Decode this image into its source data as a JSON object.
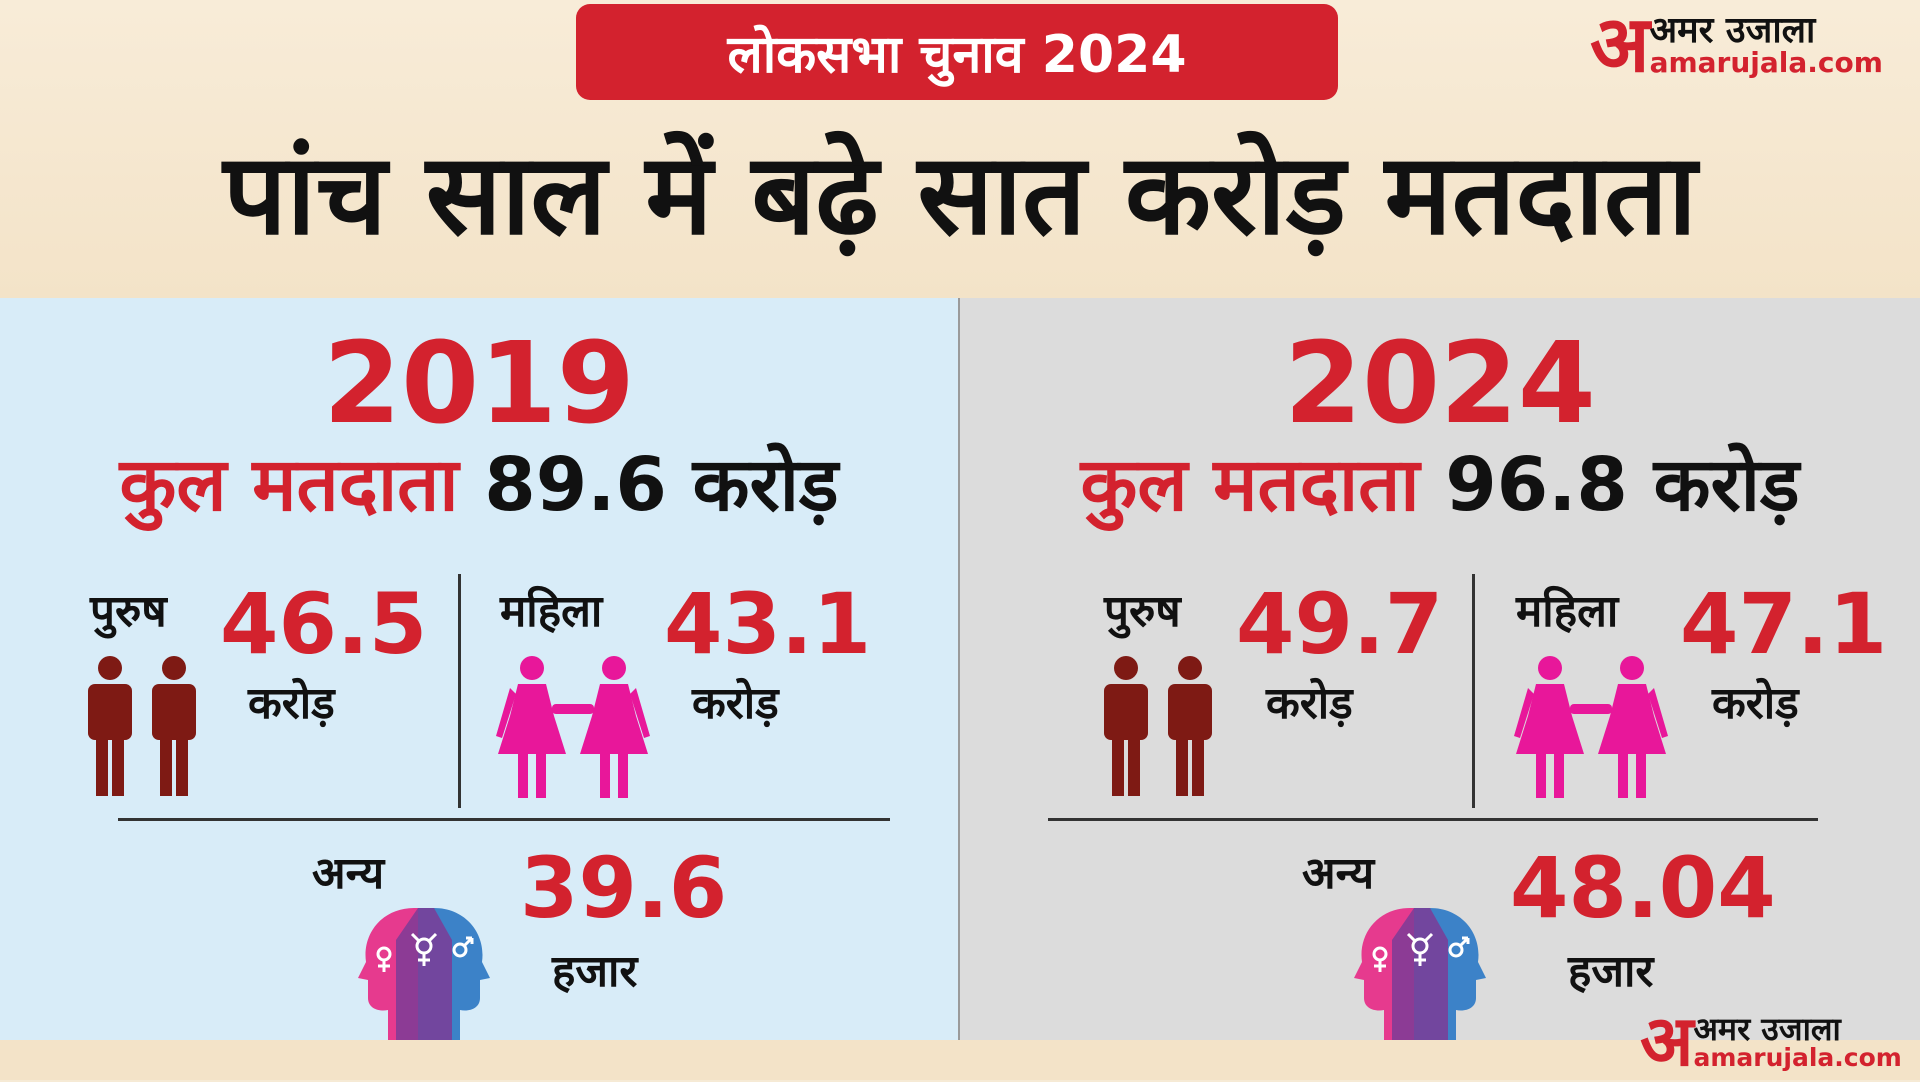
{
  "header": {
    "tag": "लोकसभा चुनाव 2024",
    "headline": "पांच साल में बढ़े सात करोड़ मतदाता"
  },
  "logo": {
    "symbol": "अ",
    "hindi": "अमर उजाला",
    "english": "amarujala.com"
  },
  "panels": [
    {
      "year": "2019",
      "total_label": "कुल मतदाता",
      "total_value": "89.6 करोड़",
      "male": {
        "label": "पुरुष",
        "value": "46.5",
        "unit": "करोड़"
      },
      "female": {
        "label": "महिला",
        "value": "43.1",
        "unit": "करोड़"
      },
      "other": {
        "label": "अन्य",
        "value": "39.6",
        "unit": "हजार"
      }
    },
    {
      "year": "2024",
      "total_label": "कुल मतदाता",
      "total_value": "96.8 करोड़",
      "male": {
        "label": "पुरुष",
        "value": "49.7",
        "unit": "करोड़"
      },
      "female": {
        "label": "महिला",
        "value": "47.1",
        "unit": "करोड़"
      },
      "other": {
        "label": "अन्य",
        "value": "48.04",
        "unit": "हजार"
      }
    }
  ],
  "icons": {
    "male": "male-figures-icon",
    "female": "female-figures-icon",
    "other": "gender-heads-icon"
  },
  "colors": {
    "accent": "#d3222e",
    "male": "#7e1a14",
    "female": "#e8179a",
    "left_panel": "#d8ecf8",
    "right_panel": "#dcdcdc"
  }
}
